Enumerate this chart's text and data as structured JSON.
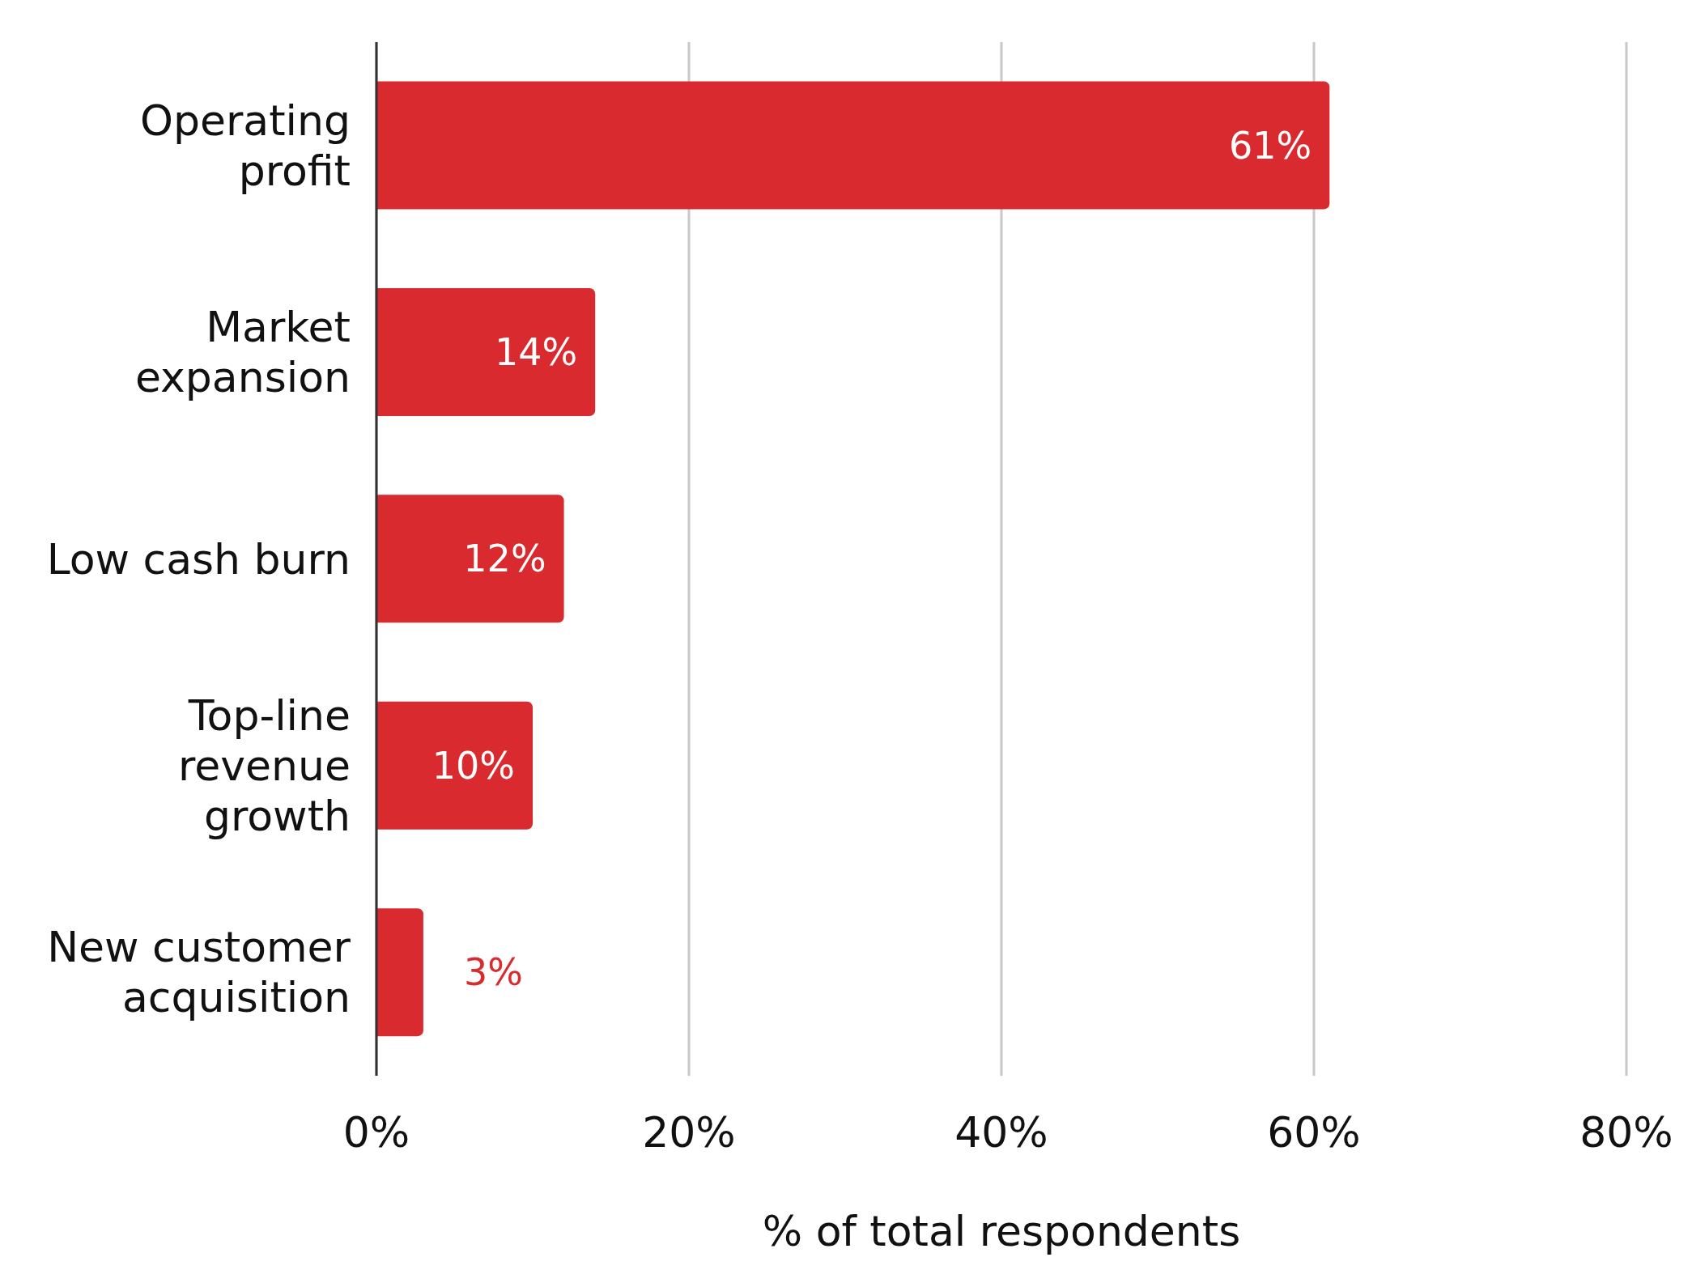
{
  "chart_data": {
    "type": "bar",
    "orientation": "horizontal",
    "xlabel": "% of total respondents",
    "categories": [
      "Operating profit",
      "Market expansion",
      "Low cash burn",
      "Top-line revenue growth",
      "New customer acquisition"
    ],
    "values": [
      61,
      14,
      12,
      10,
      3
    ],
    "color": "#d92b2f",
    "value_labels": [
      "61%",
      "14%",
      "12%",
      "10%",
      "3%"
    ],
    "xlim": [
      0,
      80
    ],
    "xticks": [
      {
        "value": 0,
        "label": "0%"
      },
      {
        "value": 20,
        "label": "20%"
      },
      {
        "value": 40,
        "label": "40%"
      },
      {
        "value": 60,
        "label": "60%"
      },
      {
        "value": 80,
        "label": "80%"
      }
    ],
    "grid": "x"
  }
}
